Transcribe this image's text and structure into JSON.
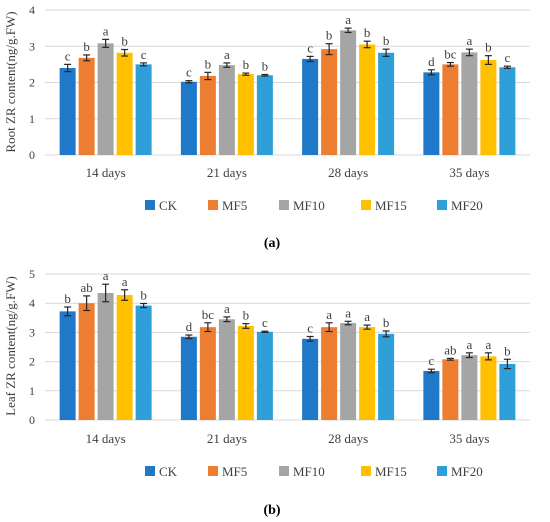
{
  "colors": {
    "CK": "#1f78c8",
    "MF5": "#ed7d31",
    "MF10": "#a5a5a5",
    "MF15": "#ffc000",
    "MF20": "#2e9fd8"
  },
  "chart_data": [
    {
      "type": "bar",
      "panel_label": "(a)",
      "ylabel": "Root ZR content(ng/g.FW)",
      "ylim": [
        0,
        4
      ],
      "yticks": [
        0,
        1,
        2,
        3,
        4
      ],
      "grid": true,
      "legend_placement": "bottom",
      "categories": [
        "14 days",
        "21 days",
        "28 days",
        "35 days"
      ],
      "series": [
        {
          "name": "CK",
          "values": [
            2.4,
            2.02,
            2.65,
            2.28
          ],
          "errors": [
            0.1,
            0.03,
            0.07,
            0.07
          ],
          "letters": [
            "c",
            "c",
            "c",
            "d"
          ]
        },
        {
          "name": "MF5",
          "values": [
            2.68,
            2.18,
            2.92,
            2.5
          ],
          "errors": [
            0.08,
            0.1,
            0.15,
            0.05
          ],
          "letters": [
            "b",
            "b",
            "b",
            "bc"
          ]
        },
        {
          "name": "MF10",
          "values": [
            3.08,
            2.48,
            3.44,
            2.83
          ],
          "errors": [
            0.11,
            0.06,
            0.06,
            0.09
          ],
          "letters": [
            "a",
            "a",
            "a",
            "a"
          ]
        },
        {
          "name": "MF15",
          "values": [
            2.82,
            2.23,
            3.05,
            2.62
          ],
          "errors": [
            0.09,
            0.03,
            0.09,
            0.12
          ],
          "letters": [
            "b",
            "b",
            "b",
            "b"
          ]
        },
        {
          "name": "MF20",
          "values": [
            2.5,
            2.2,
            2.82,
            2.42
          ],
          "errors": [
            0.04,
            0.02,
            0.1,
            0.03
          ],
          "letters": [
            "c",
            "b",
            "b",
            "c"
          ]
        }
      ]
    },
    {
      "type": "bar",
      "panel_label": "(b)",
      "ylabel": "Leaf ZR content(ng/g.FW)",
      "ylim": [
        0,
        5
      ],
      "yticks": [
        0,
        1,
        2,
        3,
        4,
        5
      ],
      "grid": true,
      "legend_placement": "bottom",
      "categories": [
        "14 days",
        "21 days",
        "28 days",
        "35 days"
      ],
      "series": [
        {
          "name": "CK",
          "values": [
            3.72,
            2.85,
            2.78,
            1.68
          ],
          "errors": [
            0.15,
            0.06,
            0.08,
            0.06
          ],
          "letters": [
            "b",
            "d",
            "c",
            "c"
          ]
        },
        {
          "name": "MF5",
          "values": [
            4.0,
            3.18,
            3.18,
            2.08
          ],
          "errors": [
            0.25,
            0.15,
            0.15,
            0.03
          ],
          "letters": [
            "ab",
            "bc",
            "a",
            "ab"
          ]
        },
        {
          "name": "MF10",
          "values": [
            4.35,
            3.45,
            3.32,
            2.22
          ],
          "errors": [
            0.3,
            0.08,
            0.06,
            0.08
          ],
          "letters": [
            "a",
            "a",
            "a",
            "a"
          ]
        },
        {
          "name": "MF15",
          "values": [
            4.28,
            3.22,
            3.18,
            2.18
          ],
          "errors": [
            0.18,
            0.08,
            0.07,
            0.12
          ],
          "letters": [
            "a",
            "b",
            "a",
            "a"
          ]
        },
        {
          "name": "MF20",
          "values": [
            3.92,
            3.02,
            2.95,
            1.92
          ],
          "errors": [
            0.07,
            0.02,
            0.1,
            0.16
          ],
          "letters": [
            "b",
            "c",
            "b",
            "b"
          ]
        }
      ]
    }
  ]
}
